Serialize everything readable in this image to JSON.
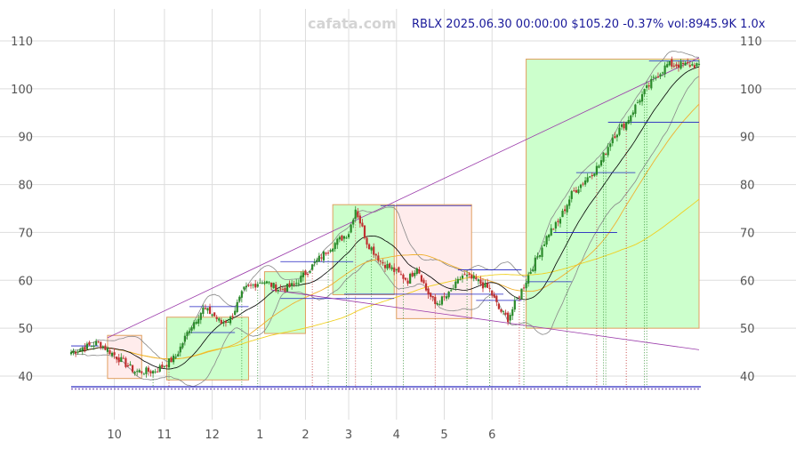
{
  "header": {
    "watermark": "cafata.com",
    "info": "RBLX 2025.06.30 00:00:00 $105.20 -0.37% vol:8945.9K 1.0x"
  },
  "colors": {
    "up": "#2a8a2a",
    "down": "#c03030",
    "box_up_fill": "#ccffcc",
    "box_down_fill": "#ffecec",
    "box_border": "#e0a060",
    "trend": "#9a3aaa",
    "ma_short": "#000000",
    "ma_mid": "#f0b030",
    "ma_long": "#f0d020",
    "band": "#888888",
    "level": "#2020c0"
  },
  "chart_data": {
    "type": "candlestick",
    "ticker": "RBLX",
    "x_ticks": [
      "10",
      "11",
      "12",
      "1",
      "2",
      "3",
      "4",
      "5",
      "6"
    ],
    "y_ticks": [
      40,
      50,
      60,
      70,
      80,
      90,
      100,
      110
    ],
    "ylim": [
      35,
      113
    ],
    "grid": true,
    "last": {
      "date": "2025.06.30",
      "close": 105.2,
      "change_pct": -0.37,
      "volume": "8945.9K"
    },
    "anchors": [
      {
        "t": 0,
        "c": 45
      },
      {
        "t": 12,
        "c": 47
      },
      {
        "t": 20,
        "c": 44
      },
      {
        "t": 28,
        "c": 41
      },
      {
        "t": 36,
        "c": 41
      },
      {
        "t": 40,
        "c": 42
      },
      {
        "t": 46,
        "c": 44
      },
      {
        "t": 52,
        "c": 50
      },
      {
        "t": 58,
        "c": 54
      },
      {
        "t": 62,
        "c": 53
      },
      {
        "t": 66,
        "c": 51
      },
      {
        "t": 70,
        "c": 52
      },
      {
        "t": 76,
        "c": 58
      },
      {
        "t": 84,
        "c": 60
      },
      {
        "t": 92,
        "c": 58
      },
      {
        "t": 98,
        "c": 59
      },
      {
        "t": 106,
        "c": 63
      },
      {
        "t": 114,
        "c": 67
      },
      {
        "t": 122,
        "c": 70
      },
      {
        "t": 125,
        "c": 75
      },
      {
        "t": 130,
        "c": 68
      },
      {
        "t": 136,
        "c": 64
      },
      {
        "t": 142,
        "c": 62
      },
      {
        "t": 148,
        "c": 60
      },
      {
        "t": 152,
        "c": 63
      },
      {
        "t": 156,
        "c": 58
      },
      {
        "t": 160,
        "c": 55
      },
      {
        "t": 166,
        "c": 57
      },
      {
        "t": 172,
        "c": 61
      },
      {
        "t": 178,
        "c": 60
      },
      {
        "t": 184,
        "c": 58
      },
      {
        "t": 188,
        "c": 54
      },
      {
        "t": 192,
        "c": 52
      },
      {
        "t": 198,
        "c": 58
      },
      {
        "t": 204,
        "c": 64
      },
      {
        "t": 210,
        "c": 70
      },
      {
        "t": 214,
        "c": 72
      },
      {
        "t": 220,
        "c": 78
      },
      {
        "t": 226,
        "c": 81
      },
      {
        "t": 232,
        "c": 84
      },
      {
        "t": 238,
        "c": 90
      },
      {
        "t": 244,
        "c": 93
      },
      {
        "t": 250,
        "c": 98
      },
      {
        "t": 256,
        "c": 102
      },
      {
        "t": 262,
        "c": 105
      }
    ],
    "boxes": [
      {
        "t0": 16,
        "t1": 31,
        "low": 39.5,
        "high": 48.5,
        "dir": "down"
      },
      {
        "t0": 42,
        "t1": 78,
        "low": 39.2,
        "high": 52.3,
        "dir": "up"
      },
      {
        "t0": 85,
        "t1": 103,
        "low": 48.9,
        "high": 61.8,
        "dir": "up"
      },
      {
        "t0": 115,
        "t1": 142,
        "low": 57.0,
        "high": 75.8,
        "dir": "up"
      },
      {
        "t0": 143,
        "t1": 176,
        "low": 52.0,
        "high": 75.8,
        "dir": "down"
      },
      {
        "t0": 200,
        "t1": 276,
        "low": 50.0,
        "high": 106.2,
        "dir": "up"
      }
    ],
    "trendlines": [
      {
        "t0": 16,
        "v0": 48,
        "t1": 276,
        "v1": 106.5
      },
      {
        "t0": 88,
        "v0": 58,
        "t1": 276,
        "v1": 45.5
      }
    ],
    "levels": [
      {
        "t0": 0,
        "t1": 12,
        "v": 46.3
      },
      {
        "t0": 52,
        "t1": 72,
        "v": 49.1
      },
      {
        "t0": 52,
        "t1": 78,
        "v": 54.5
      },
      {
        "t0": 92,
        "t1": 124,
        "v": 63.9
      },
      {
        "t0": 92,
        "t1": 142,
        "v": 56.2
      },
      {
        "t0": 136,
        "t1": 176,
        "v": 75.6
      },
      {
        "t0": 120,
        "t1": 190,
        "v": 57.1
      },
      {
        "t0": 170,
        "t1": 198,
        "v": 62.2
      },
      {
        "t0": 178,
        "t1": 198,
        "v": 55.8
      },
      {
        "t0": 200,
        "t1": 220,
        "v": 59.7
      },
      {
        "t0": 212,
        "t1": 240,
        "v": 70.0
      },
      {
        "t0": 222,
        "t1": 248,
        "v": 82.5
      },
      {
        "t0": 236,
        "t1": 276,
        "v": 93.0
      },
      {
        "t0": 254,
        "t1": 276,
        "v": 105.8
      }
    ],
    "marker_lines": [
      36,
      43,
      75,
      82,
      106,
      113,
      121,
      125,
      132,
      146,
      160,
      174,
      184,
      197,
      199,
      218,
      231,
      234,
      235,
      244,
      252,
      253
    ]
  }
}
